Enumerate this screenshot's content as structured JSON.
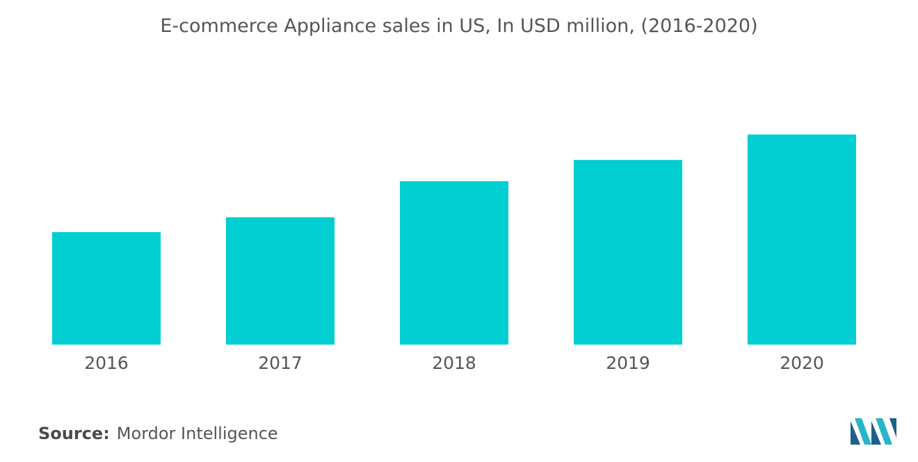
{
  "chart_data": {
    "type": "bar",
    "title": "E-commerce Appliance sales in US, In USD million, (2016-2020)",
    "categories": [
      "2016",
      "2017",
      "2018",
      "2019",
      "2020"
    ],
    "values": [
      53,
      60,
      77,
      87,
      99
    ],
    "ylim": [
      0,
      110
    ],
    "grid": false,
    "legend": "none",
    "bar_color": "#00CED1"
  },
  "source": {
    "label": "Source:",
    "text": "Mordor Intelligence"
  },
  "logo": {
    "icon": "mordor-intelligence-logo",
    "colors": [
      "#1f5f8b",
      "#28b5c8"
    ]
  }
}
